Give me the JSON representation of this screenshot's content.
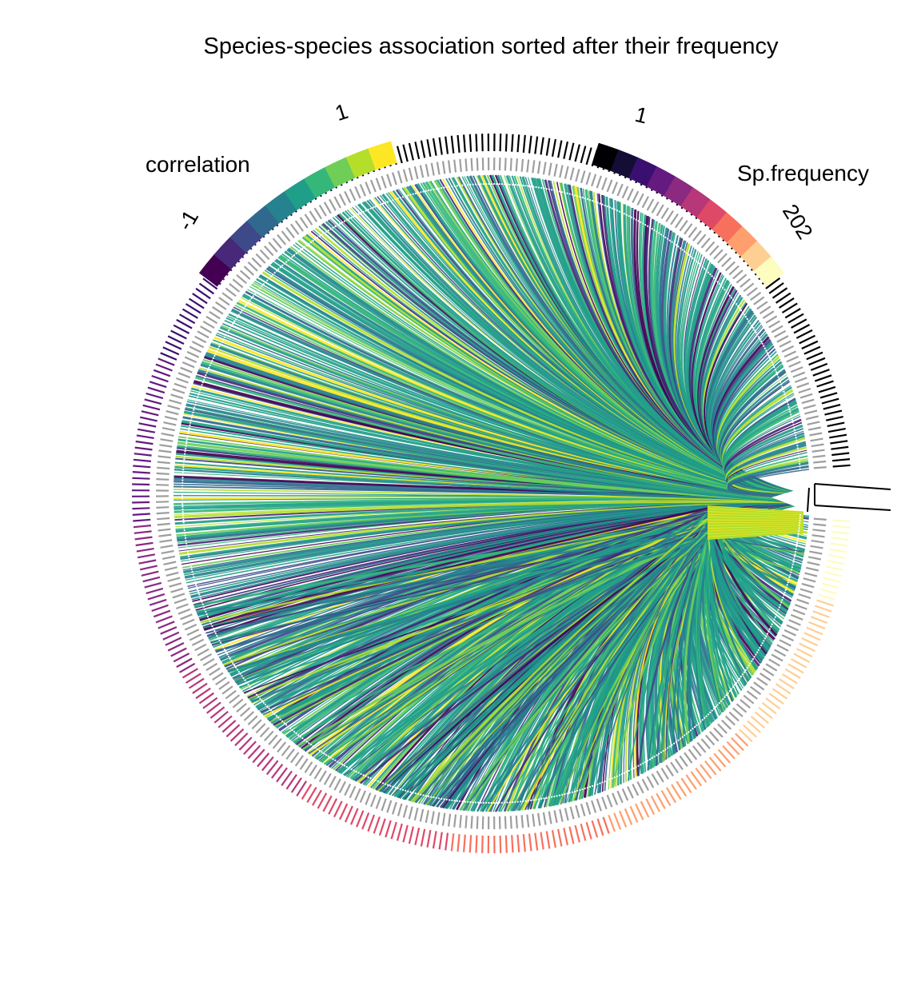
{
  "chart_data": {
    "type": "chord",
    "title": "Species-species association sorted after their frequency",
    "legends": {
      "correlation": {
        "label": "correlation",
        "min_label": "-1",
        "max_label": "1",
        "range": [
          -1,
          1
        ],
        "colors": [
          "#440154",
          "#482878",
          "#3e4989",
          "#31688e",
          "#26828e",
          "#1f9e89",
          "#35b779",
          "#6ece58",
          "#b5de2b",
          "#fde725"
        ]
      },
      "frequency": {
        "label": "Sp.frequency",
        "min_label": "1",
        "max_label": "202",
        "range": [
          1,
          202
        ],
        "colors": [
          "#000004",
          "#140e36",
          "#3b0f70",
          "#641a80",
          "#8c2981",
          "#b73779",
          "#de4968",
          "#f7705c",
          "#fe9f6d",
          "#fecf92",
          "#fcfdbf"
        ]
      }
    },
    "hub_label": ""
  }
}
